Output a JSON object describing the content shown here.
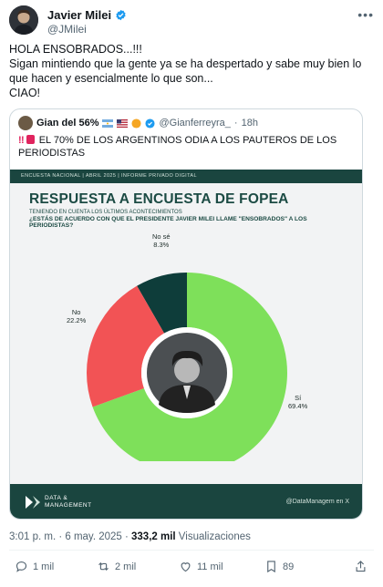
{
  "author": {
    "name": "Javier Milei",
    "handle": "@JMilei"
  },
  "tweet": {
    "lines": [
      "HOLA ENSOBRADOS...!!!",
      "Sigan mintiendo que la gente ya se ha despertado y sabe muy bien lo que hacen y esencialmente lo que son...",
      "CIAO!"
    ]
  },
  "quote": {
    "name": "Gian del 56%",
    "handle": "@Gianferreyra_",
    "time": "18h",
    "text": "EL 70% DE LOS ARGENTINOS ODIA A LOS PAUTEROS DE LOS PERIODISTAS"
  },
  "infographic": {
    "topbar": "ENCUESTA NACIONAL  |  ABRIL 2025  |  INFORME PRIVADO DIGITAL",
    "title": "RESPUESTA A ENCUESTA DE FOPEA",
    "subtitle": "TENIENDO EN CUENTA LOS ÚLTIMOS ACONTECIMIENTOS",
    "question": "¿ESTÁS DE ACUERDO CON QUE EL PRESIDENTE JAVIER MILEI LLAME \"ENSOBRADOS\" A LOS PERIODISTAS?",
    "brand_line1": "DATA &",
    "brand_line2": "MANAGEMENT",
    "brand_handle": "@DataManagem en X"
  },
  "chart_data": {
    "type": "pie",
    "categories": [
      "Sí",
      "No",
      "No sé"
    ],
    "values": [
      69.4,
      22.2,
      8.3
    ],
    "value_labels": [
      "69.4%",
      "22.2%",
      "8.3%"
    ],
    "colors": [
      "#7ee05a",
      "#f25355",
      "#0e3d3a"
    ],
    "title": "RESPUESTA A ENCUESTA DE FOPEA"
  },
  "meta": {
    "time": "3:01 p. m. · 6 may. 2025 · ",
    "views": "333,2 mil",
    "views_label": " Visualizaciones"
  },
  "actions": {
    "replies": "1 mil",
    "reposts": "2 mil",
    "likes": "11 mil",
    "bookmarks": "89"
  },
  "colors": {
    "accent": "#1d9bf0",
    "brand_dark": "#1a453f",
    "text_muted": "#536471"
  }
}
